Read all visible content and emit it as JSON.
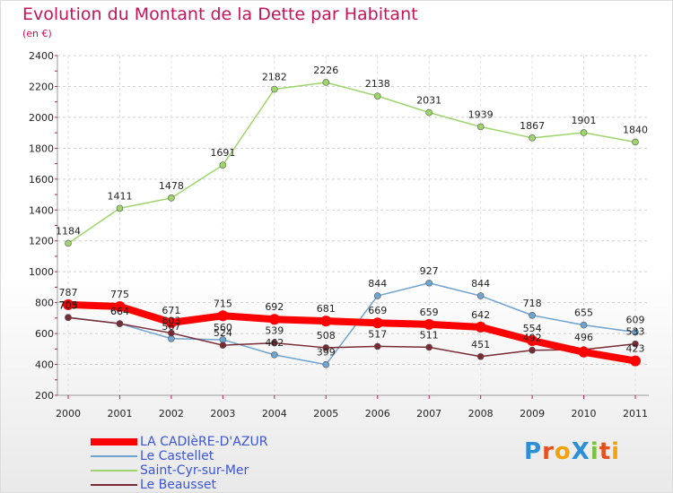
{
  "title": "Evolution du Montant de la Dette par Habitant",
  "subtitle": "(en €)",
  "logo": {
    "text": "ProXiti",
    "letters": [
      {
        "ch": "P",
        "color": "#2a8fd6"
      },
      {
        "ch": "r",
        "color": "#e84f1c"
      },
      {
        "ch": "o",
        "color": "#f2a20c"
      },
      {
        "ch": "X",
        "color": "#2a8fd6"
      },
      {
        "ch": "i",
        "color": "#7cc242"
      },
      {
        "ch": "t",
        "color": "#e84f1c"
      },
      {
        "ch": "i",
        "color": "#f2a20c"
      }
    ]
  },
  "chart_data": {
    "type": "line",
    "x": [
      "2000",
      "2001",
      "2002",
      "2003",
      "2004",
      "2005",
      "2006",
      "2007",
      "2008",
      "2009",
      "2010",
      "2011"
    ],
    "ylim": [
      200,
      2400
    ],
    "yticks": [
      200,
      400,
      600,
      800,
      1000,
      1200,
      1400,
      1600,
      1800,
      2000,
      2200,
      2400
    ],
    "grid": true,
    "legend_position": "bottom-left",
    "series": [
      {
        "name": "LA CADIèRE-D'AZUR",
        "color": "#ff0000",
        "width": 8,
        "marker": 6,
        "values": [
          787,
          775,
          671,
          715,
          692,
          681,
          669,
          659,
          642,
          554,
          480,
          423
        ],
        "labels": [
          "787",
          "775",
          "671",
          "715",
          "692",
          "681",
          "669",
          "659",
          "642",
          "554",
          "",
          "423"
        ]
      },
      {
        "name": "Le Castellet",
        "color": "#6fa3d0",
        "width": 1.5,
        "marker": 3.5,
        "values": [
          705,
          664,
          567,
          560,
          462,
          399,
          844,
          927,
          844,
          718,
          655,
          609
        ],
        "labels": [
          "705",
          "664",
          "567",
          "560",
          "462",
          "399",
          "844",
          "927",
          "844",
          "718",
          "655",
          "609"
        ]
      },
      {
        "name": "Saint-Cyr-sur-Mer",
        "color": "#9dd56b",
        "width": 1.5,
        "marker": 3.5,
        "values": [
          1184,
          1411,
          1478,
          1691,
          2182,
          2226,
          2138,
          2031,
          1939,
          1867,
          1901,
          1840
        ],
        "labels": [
          "1184",
          "1411",
          "1478",
          "1691",
          "2182",
          "2226",
          "2138",
          "2031",
          "1939",
          "1867",
          "1901",
          "1840"
        ]
      },
      {
        "name": "Le Beausset",
        "color": "#7a2a35",
        "width": 1.5,
        "marker": 3.5,
        "values": [
          703,
          664,
          603,
          524,
          539,
          508,
          517,
          511,
          451,
          492,
          496,
          533
        ],
        "labels": [
          "703",
          "664",
          "603",
          "524",
          "539",
          "508",
          "517",
          "511",
          "451",
          "492",
          "496",
          "533"
        ]
      }
    ]
  }
}
